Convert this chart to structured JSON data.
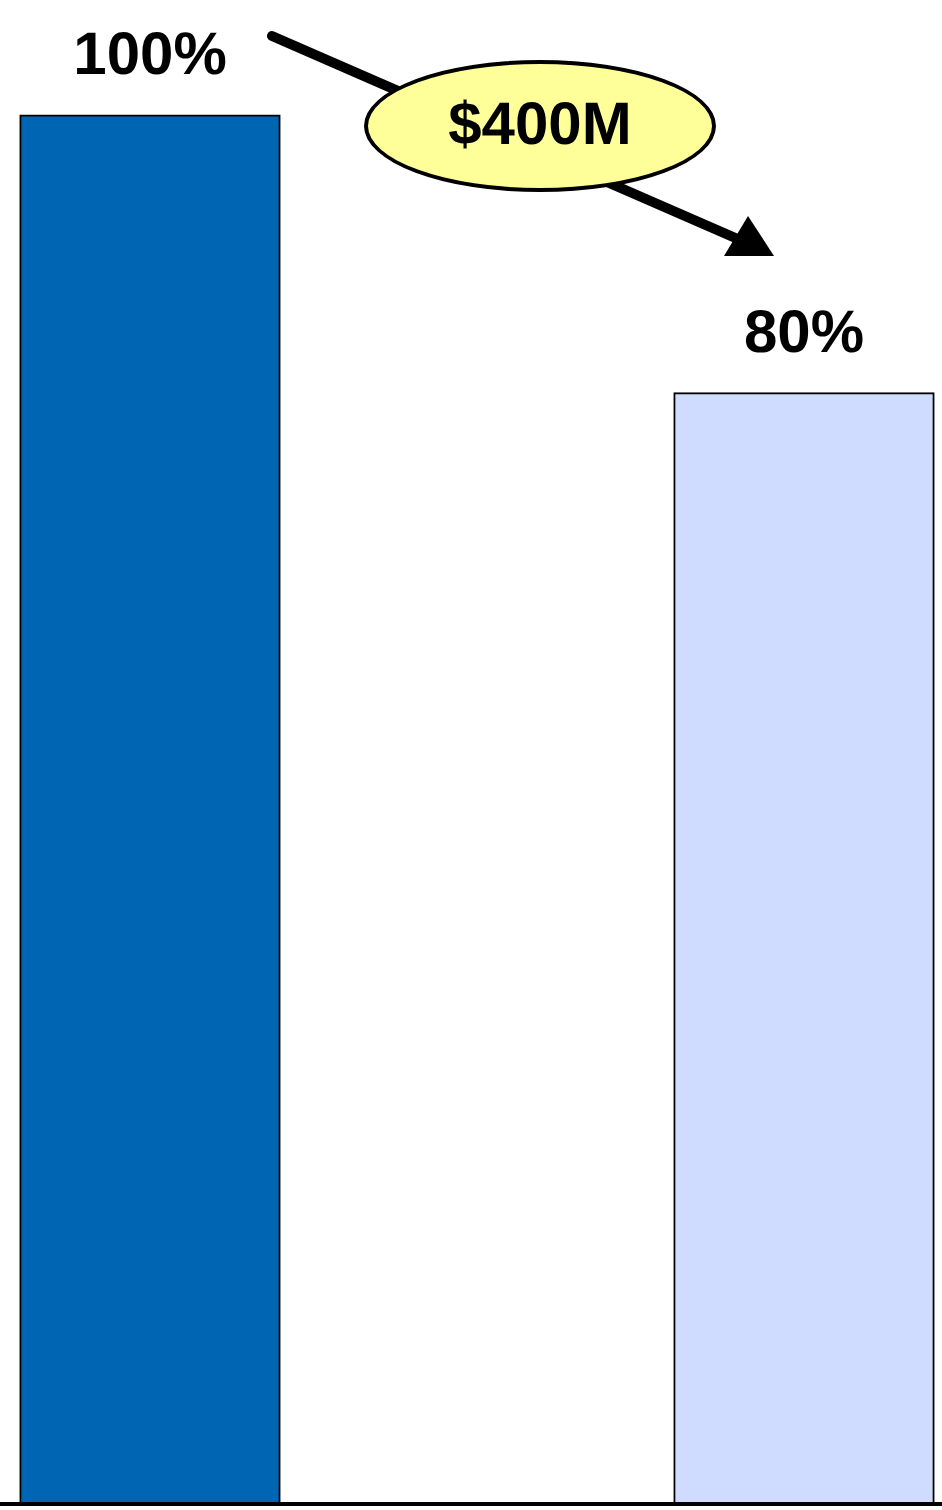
{
  "chart_data": {
    "type": "bar",
    "categories": [
      null,
      null
    ],
    "values": [
      100,
      80
    ],
    "colors": [
      "#0066b3",
      "#cfdcff"
    ],
    "value_labels": [
      "100%",
      "80%"
    ],
    "annotations": [
      "$400M"
    ]
  }
}
